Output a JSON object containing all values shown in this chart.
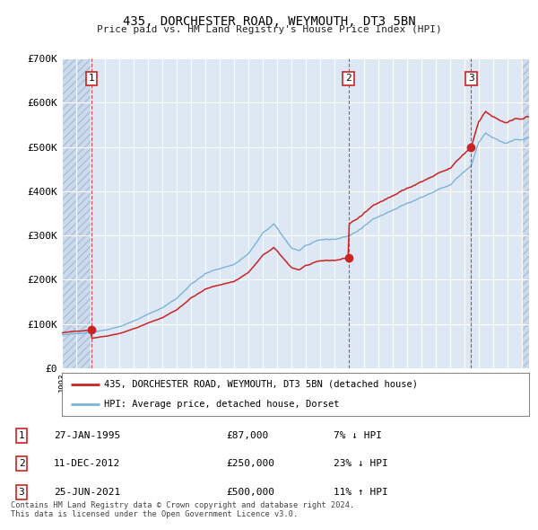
{
  "title": "435, DORCHESTER ROAD, WEYMOUTH, DT3 5BN",
  "subtitle": "Price paid vs. HM Land Registry's House Price Index (HPI)",
  "sale_times_decimal": [
    1995.074,
    2012.945,
    2021.482
  ],
  "sale_prices": [
    87000,
    250000,
    500000
  ],
  "sale_labels": [
    "1",
    "2",
    "3"
  ],
  "sale_notes": [
    "7% ↓ HPI",
    "23% ↓ HPI",
    "11% ↑ HPI"
  ],
  "sale_date_labels": [
    "27-JAN-1995",
    "11-DEC-2012",
    "25-JUN-2021"
  ],
  "sale_price_labels": [
    "£87,000",
    "£250,000",
    "£500,000"
  ],
  "legend_line1": "435, DORCHESTER ROAD, WEYMOUTH, DT3 5BN (detached house)",
  "legend_line2": "HPI: Average price, detached house, Dorset",
  "footer": "Contains HM Land Registry data © Crown copyright and database right 2024.\nThis data is licensed under the Open Government Licence v3.0.",
  "hpi_color": "#7ab4d8",
  "price_color": "#cc2222",
  "bg_color": "#dde8f4",
  "hatch_bg_color": "#ccdaed",
  "grid_color": "#ffffff",
  "ylim": [
    0,
    700000
  ],
  "xlim_start": 1993.0,
  "xlim_end": 2025.5,
  "hatch_left_end": 1995.0,
  "hatch_right_start": 2025.0,
  "yticks": [
    0,
    100000,
    200000,
    300000,
    400000,
    500000,
    600000,
    700000
  ],
  "ytick_labels": [
    "£0",
    "£100K",
    "£200K",
    "£300K",
    "£400K",
    "£500K",
    "£600K",
    "£700K"
  ]
}
